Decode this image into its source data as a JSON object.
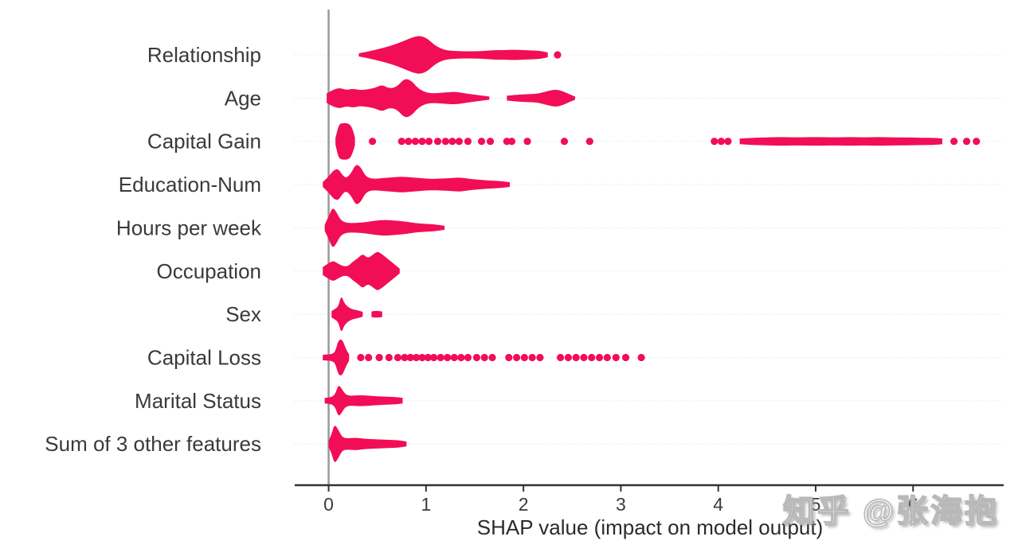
{
  "watermark": {
    "text": "知乎 @张海抱"
  },
  "chart_data": {
    "type": "scatter",
    "variant": "beeswarm",
    "title": "",
    "xlabel": "SHAP value (impact on model output)",
    "ylabel": "",
    "xlim": [
      -0.348,
      6.93
    ],
    "x_ticks": [
      0,
      1,
      2,
      3,
      4,
      5,
      6
    ],
    "grid": "horizontal-dotted",
    "legend": "none",
    "dot_color": "#f20d57",
    "zero_line_color": "#999999",
    "axis_color": "#333333",
    "label_color": "#3a3a3a",
    "grid_color": "#dcdcdc",
    "features": [
      {
        "name": "Relationship",
        "swarms": [
          [
            [
              0.31,
              2
            ],
            [
              0.4,
              4
            ],
            [
              0.5,
              7
            ],
            [
              0.6,
              10
            ],
            [
              0.7,
              14
            ],
            [
              0.8,
              19
            ],
            [
              0.88,
              23
            ],
            [
              0.95,
              24
            ],
            [
              1.02,
              20
            ],
            [
              1.08,
              13
            ],
            [
              1.15,
              8
            ],
            [
              1.22,
              5.5
            ],
            [
              1.35,
              4.5
            ],
            [
              1.5,
              4.5
            ],
            [
              1.6,
              5
            ],
            [
              1.7,
              6
            ],
            [
              1.8,
              6
            ],
            [
              1.9,
              6.5
            ],
            [
              2.0,
              6
            ],
            [
              2.1,
              5.5
            ],
            [
              2.18,
              5
            ],
            [
              2.25,
              3
            ]
          ]
        ],
        "dots": [
          2.35
        ]
      },
      {
        "name": "Age",
        "swarms": [
          [
            [
              -0.02,
              6
            ],
            [
              0.05,
              11
            ],
            [
              0.12,
              13
            ],
            [
              0.18,
              10
            ],
            [
              0.25,
              12
            ],
            [
              0.32,
              10
            ],
            [
              0.4,
              11
            ],
            [
              0.48,
              13
            ],
            [
              0.55,
              17
            ],
            [
              0.62,
              12
            ],
            [
              0.7,
              14
            ],
            [
              0.78,
              25
            ],
            [
              0.85,
              22
            ],
            [
              0.92,
              12
            ],
            [
              1.0,
              7
            ],
            [
              1.08,
              6
            ],
            [
              1.18,
              7
            ],
            [
              1.3,
              8
            ],
            [
              1.4,
              6
            ],
            [
              1.52,
              4
            ],
            [
              1.65,
              2
            ]
          ],
          [
            [
              1.83,
              3
            ],
            [
              1.95,
              4.5
            ],
            [
              2.05,
              5
            ],
            [
              2.15,
              5.5
            ],
            [
              2.25,
              9
            ],
            [
              2.33,
              11
            ],
            [
              2.4,
              9
            ],
            [
              2.47,
              5
            ],
            [
              2.53,
              2
            ]
          ]
        ],
        "dots": []
      },
      {
        "name": "Capital Gain",
        "swarms": [
          [
            [
              0.07,
              4
            ],
            [
              0.1,
              20
            ],
            [
              0.13,
              23
            ],
            [
              0.2,
              23
            ],
            [
              0.24,
              18
            ],
            [
              0.27,
              5
            ]
          ],
          [
            [
              4.22,
              3.5
            ],
            [
              4.35,
              4.5
            ],
            [
              4.5,
              5
            ],
            [
              4.65,
              5.5
            ],
            [
              4.8,
              5
            ],
            [
              5.0,
              5.5
            ],
            [
              5.2,
              5
            ],
            [
              5.35,
              5.5
            ],
            [
              5.5,
              5
            ],
            [
              5.65,
              5.5
            ],
            [
              5.8,
              5
            ],
            [
              5.95,
              5
            ],
            [
              6.1,
              4.5
            ],
            [
              6.22,
              4.5
            ],
            [
              6.3,
              3.5
            ]
          ]
        ],
        "dots": [
          0.45,
          0.75,
          0.82,
          0.89,
          0.96,
          1.03,
          1.12,
          1.2,
          1.27,
          1.34,
          1.43,
          1.57,
          1.66,
          1.83,
          1.88,
          2.04,
          2.42,
          2.68,
          3.96,
          4.03,
          4.1,
          6.42,
          6.55,
          6.65
        ]
      },
      {
        "name": "Education-Num",
        "swarms": [
          [
            [
              -0.06,
              3
            ],
            [
              0.0,
              10
            ],
            [
              0.05,
              18
            ],
            [
              0.1,
              20
            ],
            [
              0.14,
              12
            ],
            [
              0.18,
              8
            ],
            [
              0.23,
              14
            ],
            [
              0.28,
              26
            ],
            [
              0.33,
              22
            ],
            [
              0.38,
              10
            ],
            [
              0.45,
              7
            ],
            [
              0.55,
              8
            ],
            [
              0.65,
              9
            ],
            [
              0.75,
              10
            ],
            [
              0.85,
              9
            ],
            [
              0.95,
              8
            ],
            [
              1.05,
              7
            ],
            [
              1.15,
              7.5
            ],
            [
              1.25,
              8
            ],
            [
              1.35,
              9
            ],
            [
              1.45,
              7
            ],
            [
              1.55,
              6
            ],
            [
              1.65,
              5
            ],
            [
              1.75,
              4.5
            ],
            [
              1.86,
              3
            ]
          ]
        ],
        "dots": []
      },
      {
        "name": "Hours per week",
        "swarms": [
          [
            [
              -0.04,
              4
            ],
            [
              0.0,
              14
            ],
            [
              0.04,
              26
            ],
            [
              0.08,
              20
            ],
            [
              0.12,
              10
            ],
            [
              0.18,
              6
            ],
            [
              0.28,
              6
            ],
            [
              0.38,
              7
            ],
            [
              0.48,
              9
            ],
            [
              0.58,
              10
            ],
            [
              0.68,
              9
            ],
            [
              0.78,
              8
            ],
            [
              0.88,
              6
            ],
            [
              0.98,
              5
            ],
            [
              1.08,
              4.5
            ],
            [
              1.19,
              2.5
            ]
          ]
        ],
        "dots": []
      },
      {
        "name": "Occupation",
        "swarms": [
          [
            [
              -0.06,
              5
            ],
            [
              0.0,
              10
            ],
            [
              0.05,
              13
            ],
            [
              0.1,
              9
            ],
            [
              0.15,
              6
            ],
            [
              0.2,
              6
            ],
            [
              0.25,
              12
            ],
            [
              0.3,
              16
            ],
            [
              0.35,
              22
            ],
            [
              0.4,
              16
            ],
            [
              0.45,
              20
            ],
            [
              0.5,
              25
            ],
            [
              0.55,
              21
            ],
            [
              0.6,
              16
            ],
            [
              0.65,
              11
            ],
            [
              0.7,
              6
            ],
            [
              0.73,
              3
            ]
          ]
        ],
        "dots": []
      },
      {
        "name": "Sex",
        "swarms": [
          [
            [
              0.03,
              4
            ],
            [
              0.07,
              7
            ],
            [
              0.1,
              10
            ],
            [
              0.13,
              24
            ],
            [
              0.16,
              14
            ],
            [
              0.2,
              9
            ],
            [
              0.25,
              6
            ],
            [
              0.3,
              5
            ],
            [
              0.35,
              3
            ]
          ],
          [
            [
              0.44,
              3.5
            ],
            [
              0.49,
              4.5
            ],
            [
              0.55,
              3.5
            ]
          ]
        ],
        "dots": []
      },
      {
        "name": "Capital Loss",
        "swarms": [
          [
            [
              -0.06,
              3.5
            ],
            [
              0.0,
              4
            ],
            [
              0.04,
              4.5
            ],
            [
              0.07,
              8
            ],
            [
              0.1,
              22
            ],
            [
              0.14,
              23
            ],
            [
              0.18,
              10
            ],
            [
              0.21,
              4
            ]
          ]
        ],
        "dots": [
          0.33,
          0.41,
          0.52,
          0.62,
          0.71,
          0.78,
          0.84,
          0.9,
          0.96,
          1.02,
          1.08,
          1.15,
          1.22,
          1.29,
          1.36,
          1.43,
          1.52,
          1.6,
          1.68,
          1.85,
          1.93,
          2.01,
          2.09,
          2.17,
          2.38,
          2.46,
          2.54,
          2.62,
          2.7,
          2.78,
          2.86,
          2.95,
          3.05,
          3.21
        ]
      },
      {
        "name": "Marital Status",
        "swarms": [
          [
            [
              -0.04,
              3.5
            ],
            [
              0.0,
              4
            ],
            [
              0.04,
              5
            ],
            [
              0.07,
              9
            ],
            [
              0.1,
              20
            ],
            [
              0.13,
              16
            ],
            [
              0.17,
              8
            ],
            [
              0.22,
              6
            ],
            [
              0.3,
              7
            ],
            [
              0.4,
              6.5
            ],
            [
              0.5,
              5.5
            ],
            [
              0.6,
              5
            ],
            [
              0.7,
              4.5
            ],
            [
              0.76,
              3.5
            ]
          ]
        ],
        "dots": []
      },
      {
        "name": "Sum of 3 other features",
        "swarms": [
          [
            [
              0.0,
              4
            ],
            [
              0.03,
              12
            ],
            [
              0.06,
              25
            ],
            [
              0.1,
              18
            ],
            [
              0.14,
              8
            ],
            [
              0.2,
              7
            ],
            [
              0.28,
              8
            ],
            [
              0.36,
              6.5
            ],
            [
              0.45,
              6
            ],
            [
              0.55,
              5.5
            ],
            [
              0.65,
              5
            ],
            [
              0.73,
              4.5
            ],
            [
              0.8,
              3
            ]
          ]
        ],
        "dots": []
      }
    ]
  }
}
